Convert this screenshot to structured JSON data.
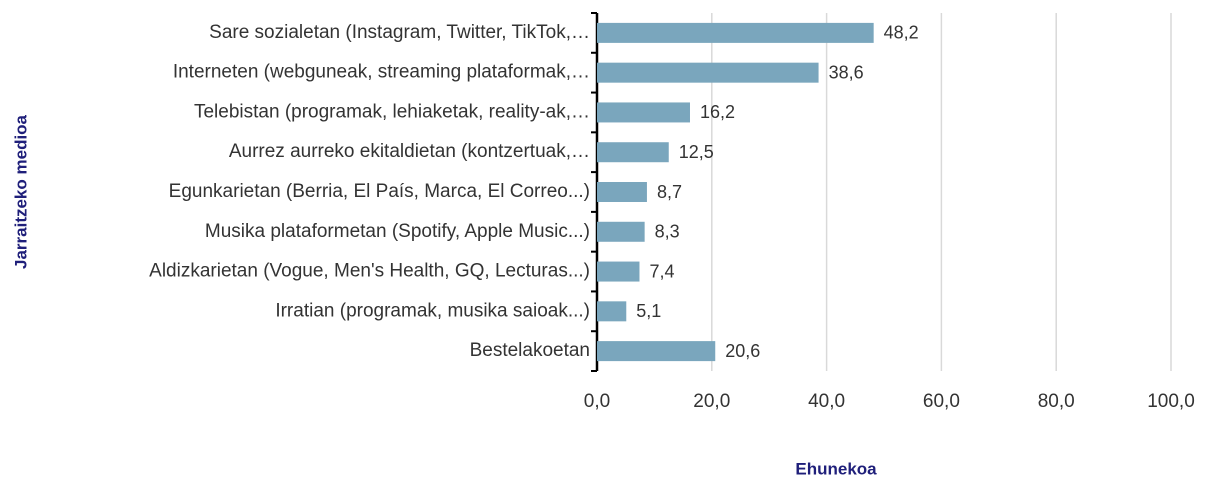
{
  "chart_data": {
    "type": "bar",
    "orientation": "horizontal",
    "y_axis_label": "Jarraitzeko medioa",
    "x_axis_label": "Ehunekoa",
    "categories": [
      "Sare sozialetan (Instagram, Twitter, TikTok,…",
      "Interneten (webguneak, streaming plataformak,…",
      "Telebistan (programak, lehiaketak, reality-ak,…",
      "Aurrez aurreko ekitaldietan (kontzertuak,…",
      "Egunkarietan (Berria, El País, Marca, El Correo...)",
      "Musika plataformetan (Spotify, Apple Music...)",
      "Aldizkarietan (Vogue, Men's Health, GQ, Lecturas...)",
      "Irratian (programak, musika saioak...)",
      "Bestelakoetan"
    ],
    "values": [
      48.2,
      38.6,
      16.2,
      12.5,
      8.7,
      8.3,
      7.4,
      5.1,
      20.6
    ],
    "value_labels": [
      "48,2",
      "38,6",
      "16,2",
      "12,5",
      "8,7",
      "8,3",
      "7,4",
      "5,1",
      "20,6"
    ],
    "color": "#7aa6bd",
    "xlim": [
      0,
      100
    ],
    "xticks": [
      {
        "value": 0,
        "label": "0,0"
      },
      {
        "value": 20,
        "label": "20,0"
      },
      {
        "value": 40,
        "label": "40,0"
      },
      {
        "value": 60,
        "label": "60,0"
      },
      {
        "value": 80,
        "label": "80,0"
      },
      {
        "value": 100,
        "label": "100,0"
      }
    ],
    "grid": true
  }
}
